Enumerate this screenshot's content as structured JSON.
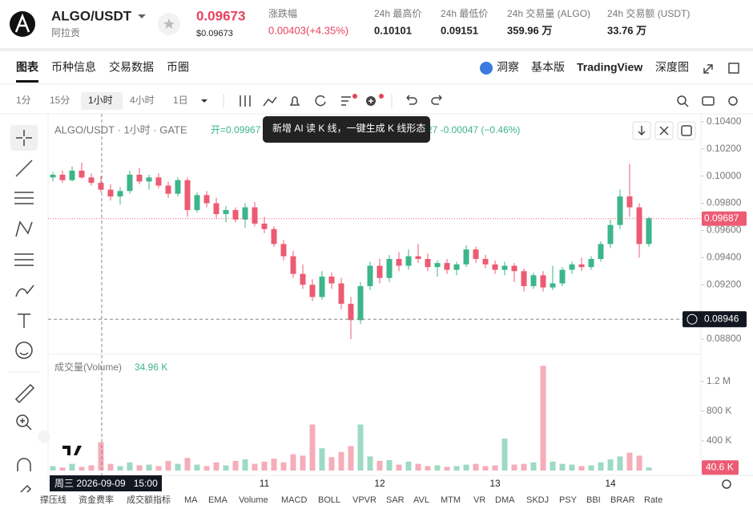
{
  "header": {
    "symbol": "ALGO/USDT",
    "name": "阿拉贡",
    "price": "0.09673",
    "price_usd": "$0.09673",
    "stats": [
      {
        "label": "涨跌幅",
        "value": "0.00403(+4.35%)"
      },
      {
        "label": "24h 最高价",
        "value": "0.10101"
      },
      {
        "label": "24h 最低价",
        "value": "0.09151"
      },
      {
        "label": "24h 交易量 (ALGO)",
        "value": "359.96 万"
      },
      {
        "label": "24h 交易额 (USDT)",
        "value": "33.76 万"
      }
    ]
  },
  "nav": {
    "tabs": [
      "图表",
      "币种信息",
      "交易数据",
      "币圈"
    ],
    "right": [
      "洞察",
      "基本版",
      "TradingView",
      "深度图"
    ]
  },
  "toolbar": {
    "intervals": [
      "1分",
      "15分",
      "1小时",
      "4小时",
      "1日"
    ]
  },
  "tooltip": "新增 AI 读 K 线，一键生成 K 线形态",
  "indicators": [
    "撑压线",
    "资金费率",
    "成交额指标",
    "MA",
    "EMA",
    "Volume",
    "MACD",
    "BOLL",
    "VPVR",
    "SAR",
    "AVL",
    "MTM",
    "VR",
    "DMA",
    "SKDJ",
    "PSY",
    "BBI",
    "BRAR",
    "Rate"
  ],
  "chart_data": {
    "type": "candlestick",
    "title": "ALGO/USDT · 1小时 · GATE",
    "legend_open": "开=0.09967",
    "legend_tail": "27  -0.00047 (−0.46%)",
    "up_color": "#3cb68a",
    "down_color": "#ec5b73",
    "categories": [
      null,
      null,
      null,
      null,
      null,
      null,
      null,
      null,
      null,
      null,
      null,
      null,
      null,
      null,
      null,
      null,
      null,
      null,
      null,
      null,
      null,
      null,
      "11",
      null,
      null,
      null,
      null,
      null,
      null,
      null,
      null,
      null,
      null,
      null,
      "12",
      null,
      null,
      null,
      null,
      null,
      null,
      null,
      null,
      null,
      null,
      null,
      "13",
      null,
      null,
      null,
      null,
      null,
      null,
      null,
      null,
      null,
      null,
      null,
      "14",
      null,
      null,
      null,
      null
    ],
    "candles": [
      [
        0.0999,
        0.1003,
        0.0996,
        0.1001
      ],
      [
        0.1001,
        0.1004,
        0.0995,
        0.0997
      ],
      [
        0.0997,
        0.1007,
        0.0996,
        0.1004
      ],
      [
        0.1004,
        0.101,
        0.0998,
        0.0999
      ],
      [
        0.0999,
        0.1002,
        0.0993,
        0.0995
      ],
      [
        0.0995,
        0.1,
        0.0988,
        0.099
      ],
      [
        0.099,
        0.0994,
        0.0982,
        0.0985
      ],
      [
        0.0985,
        0.0992,
        0.0979,
        0.0989
      ],
      [
        0.0989,
        0.1004,
        0.0987,
        0.1001
      ],
      [
        0.1001,
        0.1006,
        0.0994,
        0.0996
      ],
      [
        0.0996,
        0.1001,
        0.099,
        0.0999
      ],
      [
        0.0999,
        0.1002,
        0.0991,
        0.0993
      ],
      [
        0.0993,
        0.0996,
        0.0984,
        0.0987
      ],
      [
        0.0987,
        0.0999,
        0.0985,
        0.0997
      ],
      [
        0.0997,
        0.0999,
        0.097,
        0.0975
      ],
      [
        0.0975,
        0.0988,
        0.0973,
        0.0986
      ],
      [
        0.0986,
        0.0989,
        0.0977,
        0.098
      ],
      [
        0.098,
        0.0984,
        0.0969,
        0.0972
      ],
      [
        0.0972,
        0.0978,
        0.0966,
        0.0975
      ],
      [
        0.0975,
        0.0977,
        0.0966,
        0.0968
      ],
      [
        0.0968,
        0.098,
        0.0962,
        0.0977
      ],
      [
        0.0977,
        0.0981,
        0.0963,
        0.0965
      ],
      [
        0.0965,
        0.097,
        0.0958,
        0.0961
      ],
      [
        0.0961,
        0.0963,
        0.0948,
        0.095
      ],
      [
        0.095,
        0.0953,
        0.0938,
        0.0941
      ],
      [
        0.0941,
        0.0945,
        0.0925,
        0.0928
      ],
      [
        0.0928,
        0.0935,
        0.0917,
        0.092
      ],
      [
        0.092,
        0.0924,
        0.0908,
        0.0911
      ],
      [
        0.0911,
        0.093,
        0.0909,
        0.0926
      ],
      [
        0.0926,
        0.0929,
        0.0917,
        0.0921
      ],
      [
        0.0921,
        0.0925,
        0.0902,
        0.0906
      ],
      [
        0.0906,
        0.0911,
        0.088,
        0.0894
      ],
      [
        0.0894,
        0.0922,
        0.0891,
        0.0919
      ],
      [
        0.0919,
        0.0937,
        0.0916,
        0.0934
      ],
      [
        0.0934,
        0.0939,
        0.0921,
        0.0925
      ],
      [
        0.0925,
        0.0942,
        0.0922,
        0.0939
      ],
      [
        0.0939,
        0.0944,
        0.093,
        0.0934
      ],
      [
        0.0934,
        0.0946,
        0.0931,
        0.0941
      ],
      [
        0.0941,
        0.095,
        0.0936,
        0.0939
      ],
      [
        0.0939,
        0.0943,
        0.093,
        0.0933
      ],
      [
        0.0933,
        0.0938,
        0.0926,
        0.0936
      ],
      [
        0.0936,
        0.0939,
        0.0928,
        0.0931
      ],
      [
        0.0931,
        0.0937,
        0.0927,
        0.0935
      ],
      [
        0.0935,
        0.0949,
        0.0933,
        0.0946
      ],
      [
        0.0946,
        0.0948,
        0.0936,
        0.0939
      ],
      [
        0.0939,
        0.0942,
        0.0932,
        0.0935
      ],
      [
        0.0935,
        0.0938,
        0.0928,
        0.0931
      ],
      [
        0.0931,
        0.0937,
        0.0927,
        0.0934
      ],
      [
        0.0934,
        0.0936,
        0.0922,
        0.093
      ],
      [
        0.093,
        0.0932,
        0.0915,
        0.0919
      ],
      [
        0.0919,
        0.0929,
        0.0917,
        0.0927
      ],
      [
        0.0927,
        0.093,
        0.0915,
        0.0918
      ],
      [
        0.0918,
        0.0934,
        0.0916,
        0.0921
      ],
      [
        0.0921,
        0.0933,
        0.0919,
        0.0931
      ],
      [
        0.0931,
        0.0937,
        0.0928,
        0.0935
      ],
      [
        0.0935,
        0.094,
        0.093,
        0.0933
      ],
      [
        0.0933,
        0.0941,
        0.0931,
        0.0939
      ],
      [
        0.0939,
        0.0952,
        0.0937,
        0.095
      ],
      [
        0.095,
        0.0968,
        0.0947,
        0.0964
      ],
      [
        0.0964,
        0.099,
        0.0961,
        0.0985
      ],
      [
        0.0985,
        0.1009,
        0.097,
        0.0977
      ],
      [
        0.0977,
        0.098,
        0.094,
        0.095
      ],
      [
        0.095,
        0.097,
        0.0948,
        0.0969
      ]
    ],
    "ylim": [
      0.087,
      0.1047
    ],
    "yticks": [
      {
        "value": 0.104,
        "label": "0.10400"
      },
      {
        "value": 0.102,
        "label": "0.10200"
      },
      {
        "value": 0.1,
        "label": "0.10000"
      },
      {
        "value": 0.098,
        "label": "0.09800"
      },
      {
        "value": 0.096,
        "label": "0.09600"
      },
      {
        "value": 0.094,
        "label": "0.09400"
      },
      {
        "value": 0.092,
        "label": "0.09200"
      },
      {
        "value": 0.088,
        "label": "0.08800"
      }
    ],
    "price_line": 0.09687,
    "crosshair_price": 0.08946,
    "crosshair_time": "周三 2026-09-09   15:00",
    "volume": {
      "title": "成交量(Volume)",
      "current": "34.96 K",
      "last_label": "40.6 K",
      "values": [
        60000,
        40000,
        90000,
        50000,
        70000,
        380000,
        90000,
        60000,
        110000,
        70000,
        80000,
        60000,
        130000,
        90000,
        170000,
        80000,
        60000,
        110000,
        70000,
        130000,
        150000,
        90000,
        120000,
        160000,
        110000,
        220000,
        200000,
        620000,
        300000,
        180000,
        250000,
        330000,
        620000,
        190000,
        130000,
        140000,
        80000,
        120000,
        90000,
        60000,
        70000,
        50000,
        60000,
        80000,
        90000,
        60000,
        70000,
        430000,
        80000,
        90000,
        110000,
        1410000,
        120000,
        90000,
        80000,
        60000,
        70000,
        110000,
        150000,
        190000,
        240000,
        200000,
        40600
      ],
      "ylim": [
        0,
        1500000
      ],
      "yticks": [
        {
          "value": 400000,
          "label": "400 K"
        },
        {
          "value": 800000,
          "label": "800 K"
        },
        {
          "value": 1200000,
          "label": "1.2 M"
        }
      ]
    }
  }
}
